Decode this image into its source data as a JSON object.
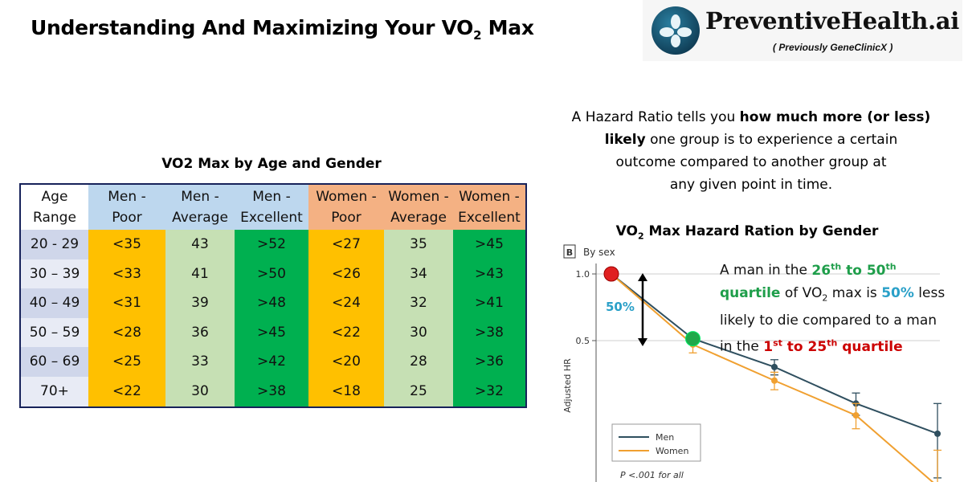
{
  "title": {
    "text": "Understanding And Maximizing Your VO",
    "sub": "2",
    "suffix": " Max"
  },
  "logo": {
    "name": "PreventiveHealth.ai",
    "subtitle": "( Previously  GeneClinicX )"
  },
  "table": {
    "title": "VO2 Max by Age and Gender",
    "headers": [
      [
        "Age",
        "Range"
      ],
      [
        "Men -",
        "Poor"
      ],
      [
        "Men -",
        "Average"
      ],
      [
        "Men -",
        "Excellent"
      ],
      [
        "Women -",
        "Poor"
      ],
      [
        "Women -",
        "Average"
      ],
      [
        "Women -",
        "Excellent"
      ]
    ],
    "rows": [
      [
        "20 - 29",
        "<35",
        "43",
        ">52",
        "<27",
        "35",
        ">45"
      ],
      [
        "30 – 39",
        "<33",
        "41",
        ">50",
        "<26",
        "34",
        ">43"
      ],
      [
        "40 – 49",
        "<31",
        "39",
        ">48",
        "<24",
        "32",
        ">41"
      ],
      [
        "50 – 59",
        "<28",
        "36",
        ">45",
        "<22",
        "30",
        ">38"
      ],
      [
        "60 – 69",
        "<25",
        "33",
        ">42",
        "<20",
        "28",
        ">36"
      ],
      [
        "70+",
        "<22",
        "30",
        ">38",
        "<18",
        "25",
        ">32"
      ]
    ]
  },
  "hazard": {
    "l1": "A Hazard Ratio tells you ",
    "l1b": "how much more (or less)",
    "l2b": "likely",
    "l2": " one group is to experience a certain",
    "l3": "outcome compared to another group at",
    "l4": "any given point in time."
  },
  "chart_title": {
    "a": "VO",
    "sub": "2",
    "b": " Max Hazard Ration by Gender"
  },
  "chart_data": {
    "type": "line",
    "panel_label": "B",
    "panel_title": "By sex",
    "ylabel": "Adjusted HR",
    "yticks": [
      "1.0",
      "0.5"
    ],
    "ylim": [
      0.0,
      1.1
    ],
    "x": [
      1,
      2,
      3,
      4,
      5
    ],
    "series": [
      {
        "name": "Men",
        "color": "#2f4f5f",
        "values": [
          1.0,
          0.51,
          0.38,
          0.26,
          0.19
        ],
        "err": [
          0,
          0.03,
          0.03,
          0.03,
          0.07
        ]
      },
      {
        "name": "Women",
        "color": "#f0a030",
        "values": [
          1.0,
          0.48,
          0.33,
          0.23,
          0.11
        ],
        "err": [
          0,
          0.04,
          0.03,
          0.03,
          0.05
        ]
      }
    ],
    "arrow_label": "50%",
    "note": "P <.001 for all"
  },
  "annotation": {
    "a1": "A man in the ",
    "g1": "26",
    "g1s": "th",
    "g2": " to 50",
    "g2s": "th",
    "g3": "quartile",
    "a2": " of VO",
    "a2sub": "2",
    "a3": " max is ",
    "pct": "50%",
    "a4": " less",
    "a5": "likely to die compared to a man",
    "a6": "in the ",
    "r1": "1",
    "r1s": "st",
    "r2": " to 25",
    "r2s": "th",
    "r3": " quartile"
  },
  "colors": {
    "poor": "#ffc000",
    "average": "#c6e0b4",
    "excellent": "#00b050",
    "men_header": "#bdd7ee",
    "women_header": "#f4b183"
  }
}
